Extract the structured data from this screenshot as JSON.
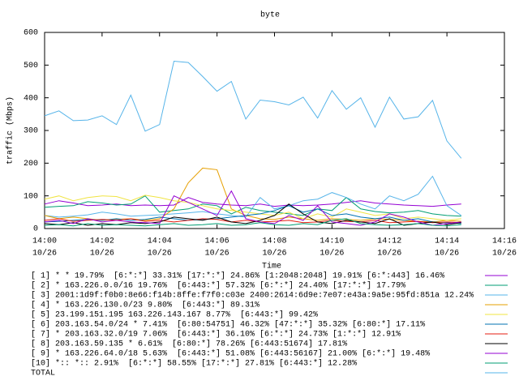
{
  "chart_data": {
    "type": "line",
    "title": "byte",
    "x_label": "Time",
    "y_label": "traffic (Mbps)",
    "x": [
      0,
      0.5,
      1,
      1.5,
      2,
      2.5,
      3,
      3.5,
      4,
      4.5,
      5,
      5.5,
      6,
      6.5,
      7,
      7.5,
      8,
      8.5,
      9,
      9.5,
      10,
      10.5,
      11,
      11.5,
      12,
      12.5,
      13,
      13.5,
      14,
      14.5
    ],
    "xlim": [
      0,
      16
    ],
    "xticks": [
      {
        "value": 0,
        "label": [
          "14:00",
          "10/26"
        ]
      },
      {
        "value": 2,
        "label": [
          "14:02",
          "10/26"
        ]
      },
      {
        "value": 4,
        "label": [
          "14:04",
          "10/26"
        ]
      },
      {
        "value": 6,
        "label": [
          "14:06",
          "10/26"
        ]
      },
      {
        "value": 8,
        "label": [
          "14:08",
          "10/26"
        ]
      },
      {
        "value": 10,
        "label": [
          "14:10",
          "10/26"
        ]
      },
      {
        "value": 12,
        "label": [
          "14:12",
          "10/26"
        ]
      },
      {
        "value": 14,
        "label": [
          "14:14",
          "10/26"
        ]
      },
      {
        "value": 16,
        "label": [
          "14:16",
          "10/26"
        ]
      }
    ],
    "ylim": [
      0,
      600
    ],
    "yticks": [
      0,
      100,
      200,
      300,
      400,
      500,
      600
    ],
    "series": [
      {
        "name": "[ 1] * * 19.79%  [6:*:*] 33.31% [17:*:*] 24.86% [1:2048:2048] 19.91% [6:*:443] 16.46%",
        "color": "#9400d3",
        "values": [
          75,
          85,
          78,
          70,
          72,
          75,
          70,
          72,
          70,
          72,
          95,
          80,
          75,
          72,
          70,
          75,
          68,
          72,
          70,
          72,
          75,
          80,
          85,
          78,
          75,
          72,
          70,
          68,
          72,
          75
        ]
      },
      {
        "name": "[ 2] * 163.226.0.0/16 19.76%  [6:443:*] 57.32% [6:*:*] 24.40% [17:*:*] 17.79%",
        "color": "#009e73",
        "values": [
          65,
          68,
          70,
          82,
          78,
          72,
          75,
          100,
          50,
          55,
          60,
          75,
          70,
          45,
          65,
          55,
          50,
          45,
          40,
          60,
          55,
          95,
          60,
          52,
          48,
          50,
          55,
          45,
          40,
          38
        ]
      },
      {
        "name": "[ 3] 2001:1d9f:f0b0:8e66:f14b:8ffe:f7f0:c03e 2400:2614:6d9e:7e07:e43a:9a5e:95fd:851a 12.24%",
        "color": "#56b4e9",
        "values": [
          40,
          35,
          38,
          42,
          50,
          45,
          38,
          40,
          42,
          45,
          48,
          52,
          45,
          40,
          35,
          95,
          60,
          70,
          85,
          90,
          110,
          95,
          75,
          60,
          100,
          85,
          105,
          160,
          70,
          40
        ]
      },
      {
        "name": "[ 4] * 163.226.130.0/23 9.80%  [6:443:*] 89.31%",
        "color": "#e69f00",
        "values": [
          40,
          30,
          35,
          30,
          25,
          28,
          30,
          25,
          30,
          60,
          140,
          185,
          180,
          60,
          40,
          30,
          28,
          35,
          30,
          25,
          30,
          28,
          25,
          30,
          28,
          25,
          22,
          20,
          25,
          22
        ]
      },
      {
        "name": "[ 5] 23.199.151.195 163.226.143.167 8.77%  [6:443:*] 99.42%",
        "color": "#f0e442",
        "values": [
          90,
          100,
          85,
          95,
          100,
          98,
          85,
          102,
          95,
          85,
          80,
          70,
          60,
          55,
          50,
          45,
          40,
          50,
          30,
          45,
          35,
          60,
          50,
          40,
          45,
          30,
          35,
          30,
          25,
          30
        ]
      },
      {
        "name": "[ 6] 203.163.54.0/24 * 7.41%  [6:80:54751] 46.32% [47:*:*] 35.32% [6:80:*] 17.11%",
        "color": "#0072b2",
        "values": [
          20,
          22,
          25,
          28,
          25,
          30,
          25,
          28,
          35,
          30,
          25,
          28,
          30,
          35,
          40,
          45,
          55,
          70,
          50,
          60,
          40,
          45,
          35,
          30,
          35,
          25,
          30,
          20,
          18,
          15
        ]
      },
      {
        "name": "[ 7] * 203.163.32.0/19 7.06%  [6:443:*] 36.10% [6:*:*] 24.73% [1:*:*] 12.91%",
        "color": "#e51e10",
        "values": [
          25,
          30,
          22,
          25,
          28,
          25,
          30,
          22,
          25,
          20,
          25,
          30,
          28,
          20,
          25,
          20,
          22,
          25,
          18,
          20,
          25,
          22,
          20,
          25,
          18,
          20,
          22,
          18,
          20,
          18
        ]
      },
      {
        "name": "[ 8] 203.163.59.135 * 6.61%  [6:80:*] 78.26% [6:443:51674] 17.81%",
        "color": "#000000",
        "values": [
          15,
          12,
          18,
          10,
          15,
          12,
          18,
          15,
          20,
          35,
          30,
          25,
          35,
          20,
          15,
          25,
          40,
          75,
          45,
          20,
          15,
          25,
          20,
          15,
          30,
          10,
          15,
          20,
          12,
          18
        ]
      },
      {
        "name": "[ 9] * 163.226.64.0/18 5.63%  [6:443:*] 51.08% [6:443:56167] 21.00% [6:*:*] 19.48%",
        "color": "#9400d3",
        "values": [
          20,
          25,
          15,
          30,
          20,
          25,
          20,
          18,
          15,
          100,
          80,
          60,
          40,
          115,
          30,
          20,
          15,
          40,
          25,
          70,
          20,
          15,
          10,
          20,
          45,
          35,
          20,
          10,
          15,
          20
        ]
      },
      {
        "name": "[10] *:: *:: 2.91%  [6:*:*] 58.55% [17:*:*] 27.81% [6:443:*] 12.28%",
        "color": "#009e73",
        "values": [
          10,
          12,
          8,
          15,
          10,
          12,
          10,
          8,
          12,
          15,
          10,
          12,
          15,
          10,
          12,
          18,
          12,
          10,
          15,
          12,
          25,
          30,
          15,
          12,
          10,
          12,
          15,
          10,
          8,
          12
        ]
      },
      {
        "name": "TOTAL",
        "color": "#56b4e9",
        "values": [
          345,
          360,
          330,
          332,
          345,
          318,
          408,
          298,
          318,
          512,
          508,
          465,
          420,
          450,
          335,
          393,
          388,
          378,
          402,
          338,
          422,
          365,
          400,
          310,
          402,
          335,
          342,
          392,
          268,
          215
        ]
      }
    ]
  }
}
